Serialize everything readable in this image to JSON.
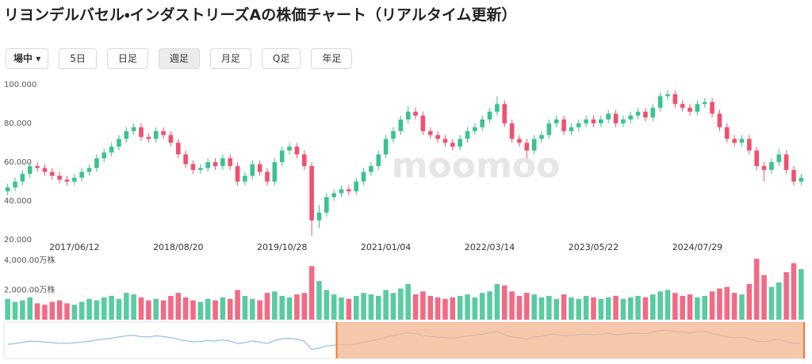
{
  "title": "リヨンデルバセル・インダストリーズAの株価チャート（リアルタイム更新）",
  "toolbar": {
    "session": "場中",
    "periods": [
      "5日",
      "日足",
      "週足",
      "月足",
      "Q足",
      "年足"
    ]
  },
  "chart_data": [
    {
      "type": "candlestick",
      "watermark": "moomoo",
      "up_color": "#3cc28f",
      "down_color": "#f0506e",
      "categories": [
        null,
        null,
        null,
        null,
        null,
        null,
        null,
        null,
        null,
        "2017/06/12",
        null,
        null,
        null,
        null,
        null,
        null,
        null,
        null,
        null,
        null,
        null,
        null,
        null,
        "2018/08/20",
        null,
        null,
        null,
        null,
        null,
        null,
        null,
        null,
        null,
        null,
        null,
        null,
        null,
        "2019/10/28",
        null,
        null,
        null,
        null,
        null,
        null,
        null,
        null,
        null,
        null,
        null,
        null,
        null,
        "2021/01/04",
        null,
        null,
        null,
        null,
        null,
        null,
        null,
        null,
        null,
        null,
        null,
        null,
        null,
        "2022/03/14",
        null,
        null,
        null,
        null,
        null,
        null,
        null,
        null,
        null,
        null,
        null,
        null,
        null,
        "2023/05/22",
        null,
        null,
        null,
        null,
        null,
        null,
        null,
        null,
        null,
        null,
        null,
        null,
        null,
        "2024/07/29",
        null,
        null,
        null,
        null,
        null,
        null,
        null,
        null,
        null,
        null,
        null,
        null,
        null,
        null
      ],
      "open": [
        45,
        47,
        50,
        54,
        58,
        57,
        55,
        53,
        51,
        50,
        52,
        55,
        57,
        62,
        65,
        68,
        72,
        76,
        78,
        73,
        72,
        76,
        74,
        70,
        64,
        59,
        56,
        57,
        60,
        58,
        62,
        58,
        50,
        53,
        59,
        55,
        50,
        60,
        66,
        68,
        64,
        58,
        30,
        34,
        42,
        44,
        46,
        45,
        50,
        55,
        58,
        64,
        72,
        76,
        82,
        86,
        84,
        76,
        74,
        72,
        70,
        68,
        72,
        76,
        78,
        82,
        86,
        90,
        80,
        72,
        70,
        66,
        72,
        74,
        80,
        82,
        76,
        78,
        80,
        82,
        80,
        82,
        85,
        80,
        82,
        84,
        86,
        83,
        88,
        94,
        95,
        90,
        88,
        86,
        90,
        91,
        85,
        78,
        72,
        70,
        72,
        66,
        58,
        56,
        60,
        64,
        56,
        50
      ],
      "high": [
        49,
        52,
        56,
        60,
        60,
        59,
        57,
        55,
        53,
        54,
        57,
        59,
        64,
        67,
        70,
        74,
        78,
        80,
        80,
        75,
        78,
        78,
        76,
        72,
        66,
        61,
        59,
        62,
        62,
        64,
        64,
        60,
        55,
        61,
        61,
        57,
        62,
        68,
        70,
        70,
        66,
        60,
        38,
        44,
        46,
        48,
        48,
        52,
        57,
        60,
        66,
        74,
        78,
        84,
        89,
        88,
        86,
        78,
        76,
        74,
        72,
        74,
        78,
        80,
        84,
        88,
        94,
        92,
        82,
        74,
        72,
        74,
        76,
        82,
        84,
        84,
        80,
        82,
        84,
        84,
        84,
        87,
        87,
        84,
        86,
        88,
        88,
        90,
        96,
        97,
        97,
        92,
        90,
        92,
        93,
        93,
        87,
        80,
        74,
        74,
        74,
        68,
        60,
        62,
        67,
        66,
        58,
        54
      ],
      "low": [
        43,
        45,
        48,
        52,
        55,
        53,
        51,
        49,
        48,
        48,
        50,
        53,
        55,
        60,
        63,
        66,
        70,
        74,
        71,
        70,
        70,
        72,
        68,
        62,
        57,
        54,
        54,
        55,
        56,
        56,
        56,
        48,
        48,
        51,
        53,
        48,
        48,
        58,
        64,
        62,
        56,
        22,
        26,
        32,
        40,
        42,
        43,
        43,
        48,
        53,
        56,
        62,
        70,
        74,
        80,
        82,
        74,
        72,
        70,
        68,
        66,
        66,
        70,
        74,
        76,
        80,
        84,
        78,
        70,
        68,
        62,
        64,
        70,
        72,
        78,
        74,
        74,
        76,
        78,
        78,
        78,
        80,
        78,
        78,
        80,
        82,
        81,
        81,
        86,
        92,
        88,
        86,
        84,
        84,
        88,
        83,
        76,
        70,
        68,
        68,
        64,
        56,
        50,
        54,
        58,
        54,
        48,
        48
      ],
      "close": [
        47,
        50,
        54,
        58,
        57,
        55,
        53,
        51,
        50,
        52,
        55,
        57,
        62,
        65,
        68,
        72,
        76,
        78,
        73,
        72,
        76,
        74,
        70,
        64,
        59,
        56,
        57,
        60,
        58,
        62,
        58,
        50,
        53,
        59,
        55,
        50,
        60,
        66,
        68,
        64,
        58,
        30,
        34,
        42,
        44,
        46,
        45,
        50,
        55,
        58,
        64,
        72,
        76,
        82,
        86,
        84,
        76,
        74,
        72,
        70,
        68,
        72,
        76,
        78,
        82,
        86,
        90,
        80,
        72,
        70,
        66,
        72,
        74,
        80,
        82,
        76,
        78,
        80,
        82,
        80,
        82,
        85,
        80,
        82,
        84,
        86,
        83,
        88,
        94,
        95,
        90,
        88,
        86,
        90,
        91,
        85,
        78,
        72,
        70,
        72,
        66,
        58,
        56,
        60,
        64,
        56,
        50,
        52
      ],
      "ylim": [
        18,
        104
      ],
      "yticks": [
        {
          "value": 100,
          "label": "100.000"
        },
        {
          "value": 80,
          "label": "80.000"
        },
        {
          "value": 60,
          "label": "60.000"
        },
        {
          "value": 40,
          "label": "40.000"
        },
        {
          "value": 20,
          "label": "20.000"
        }
      ]
    },
    {
      "type": "bar",
      "values": [
        1400,
        1200,
        1300,
        1500,
        1100,
        1000,
        1200,
        1300,
        1100,
        1000,
        1200,
        1400,
        1300,
        1500,
        1600,
        1400,
        1800,
        1700,
        1500,
        1300,
        1400,
        1300,
        1600,
        1800,
        1500,
        1300,
        1200,
        1400,
        1300,
        1500,
        1400,
        2000,
        1600,
        1400,
        1300,
        1800,
        1900,
        1600,
        1500,
        1700,
        1800,
        3600,
        2600,
        2000,
        1700,
        1500,
        1400,
        1600,
        1800,
        1700,
        1600,
        2000,
        1800,
        2100,
        2400,
        1700,
        1900,
        1600,
        1500,
        1400,
        1500,
        1600,
        1700,
        1500,
        1800,
        1900,
        2400,
        2300,
        1900,
        1600,
        1800,
        1700,
        1500,
        1600,
        1400,
        1700,
        1500,
        1400,
        1600,
        1500,
        1400,
        1500,
        1600,
        1400,
        1500,
        1600,
        1500,
        1700,
        1900,
        2000,
        1800,
        1600,
        1700,
        1500,
        1600,
        1900,
        2100,
        2200,
        1800,
        1700,
        2400,
        4100,
        3000,
        2200,
        2500,
        3200,
        3800,
        3400
      ],
      "ylim": [
        0,
        4150
      ],
      "yticks": [
        {
          "value": 4000,
          "label": "4,000.00万株"
        },
        {
          "value": 2000,
          "label": "2,000.00万株"
        }
      ]
    }
  ]
}
